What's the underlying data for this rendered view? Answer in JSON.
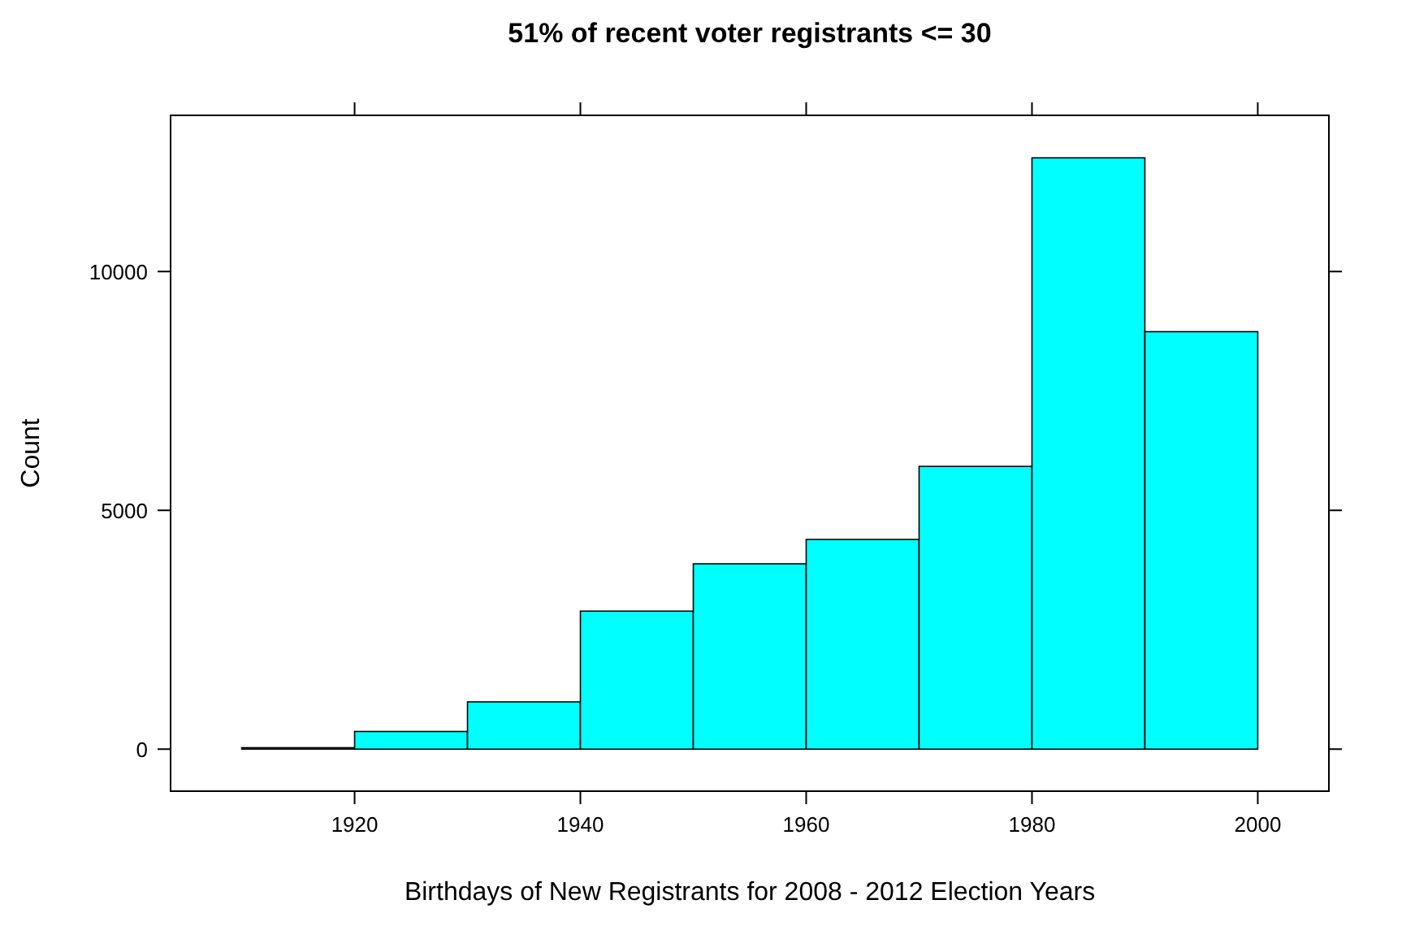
{
  "chart_data": {
    "type": "histogram",
    "title": "51% of recent voter registrants <= 30",
    "xlabel": "Birthdays of New Registrants for 2008 - 2012 Election Years",
    "ylabel": "Count",
    "bins": [
      1910,
      1920,
      1930,
      1940,
      1950,
      1960,
      1970,
      1980,
      1990,
      2000
    ],
    "values": [
      30,
      370,
      990,
      2890,
      3880,
      4390,
      5920,
      12380,
      8740
    ],
    "color": "#00ffff",
    "xlim": [
      1903.7,
      2006.3
    ],
    "xticks": [
      1920,
      1940,
      1960,
      1980,
      2000
    ],
    "ylim": [
      -880,
      13270
    ],
    "yticks": [
      0,
      5000,
      10000
    ],
    "grid": false
  }
}
